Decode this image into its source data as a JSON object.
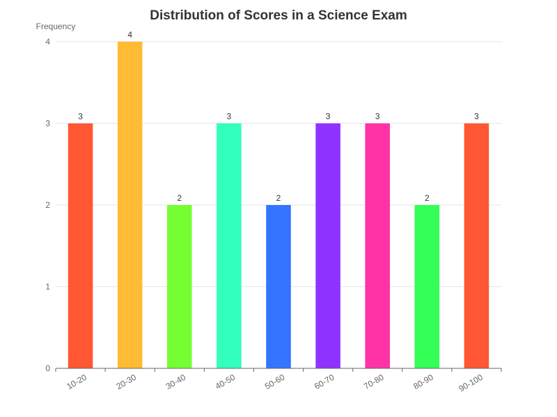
{
  "chart_data": {
    "type": "bar",
    "title": "Distribution of Scores in a Science Exam",
    "xlabel": "",
    "ylabel": "Frequency",
    "categories": [
      "10-20",
      "20-30",
      "30-40",
      "40-50",
      "50-60",
      "60-70",
      "70-80",
      "80-90",
      "90-100"
    ],
    "values": [
      3,
      4,
      2,
      3,
      2,
      3,
      3,
      2,
      3
    ],
    "ylim": [
      0,
      4
    ],
    "yticks": [
      0,
      1,
      2,
      3,
      4
    ],
    "colors": [
      "#ff5733",
      "#ffbb33",
      "#75ff33",
      "#33ffbd",
      "#3375ff",
      "#8e33ff",
      "#ff33a6",
      "#33ff57",
      "#ff5733"
    ],
    "grid": true,
    "data_labels": true,
    "x_tick_rotation": "slanted"
  }
}
